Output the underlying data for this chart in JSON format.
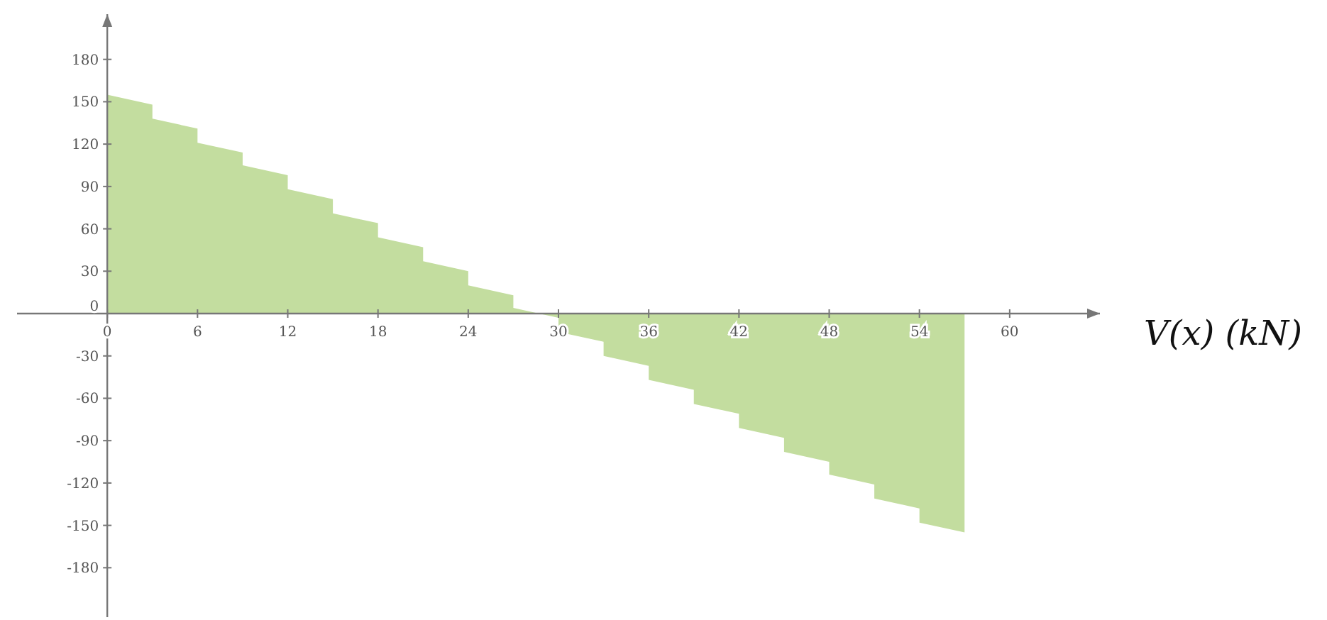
{
  "chart_data": {
    "type": "area",
    "ylabel": "V(x) (kN)",
    "color": "#c3dd9f",
    "x": [
      0,
      3,
      3,
      6,
      6,
      9,
      9,
      12,
      12,
      15,
      15,
      18,
      18,
      21,
      21,
      24,
      24,
      27,
      27,
      30,
      30,
      33,
      33,
      36,
      36,
      39,
      39,
      42,
      42,
      45,
      45,
      48,
      48,
      51,
      51,
      54,
      54,
      57,
      57
    ],
    "values": [
      155,
      148,
      138,
      131,
      121,
      114,
      105,
      98,
      88,
      81,
      71,
      64,
      54,
      47,
      37,
      30,
      20,
      13,
      4,
      -3,
      -13,
      -20,
      -30,
      -37,
      -47,
      -54,
      -64,
      -71,
      -81,
      -88,
      -98,
      -105,
      -114,
      -121,
      -131,
      -138,
      -148,
      -155,
      0
    ],
    "xlim": [
      -6,
      66
    ],
    "xticks": [
      0,
      6,
      12,
      18,
      24,
      30,
      36,
      42,
      48,
      54,
      60
    ],
    "ylim": [
      -215,
      212
    ],
    "yticks": [
      -180,
      -150,
      -120,
      -90,
      -60,
      -30,
      0,
      30,
      60,
      90,
      120,
      150,
      180
    ],
    "grid": false
  }
}
